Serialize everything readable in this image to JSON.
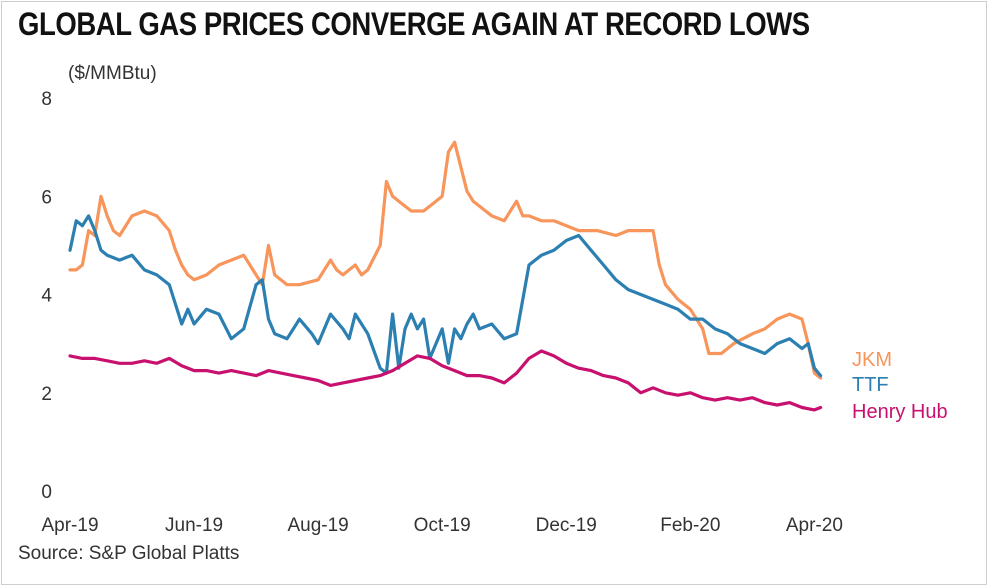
{
  "chart_data": {
    "type": "line",
    "title": "GLOBAL GAS PRICES CONVERGE AGAIN AT RECORD LOWS",
    "ylabel": "($/MMBtu)",
    "xlabel": "",
    "source": "Source: S&P Global Platts",
    "ylim": [
      0,
      8
    ],
    "yticks": [
      0,
      2,
      4,
      6,
      8
    ],
    "xlim": [
      0,
      12.3
    ],
    "xticks": [
      {
        "label": "Apr-19",
        "x": 0
      },
      {
        "label": "Jun-19",
        "x": 2
      },
      {
        "label": "Aug-19",
        "x": 4
      },
      {
        "label": "Oct-19",
        "x": 6
      },
      {
        "label": "Dec-19",
        "x": 8
      },
      {
        "label": "Feb-20",
        "x": 10
      },
      {
        "label": "Apr-20",
        "x": 12
      }
    ],
    "grid": false,
    "legend": "right, inline at line ends",
    "series": [
      {
        "name": "JKM",
        "color": "#f7955b",
        "x": [
          0.0,
          0.1,
          0.2,
          0.3,
          0.4,
          0.5,
          0.6,
          0.7,
          0.8,
          1.0,
          1.2,
          1.4,
          1.6,
          1.7,
          1.8,
          1.9,
          2.0,
          2.2,
          2.4,
          2.6,
          2.8,
          2.9,
          3.0,
          3.1,
          3.2,
          3.3,
          3.5,
          3.7,
          4.0,
          4.2,
          4.3,
          4.4,
          4.5,
          4.6,
          4.7,
          4.8,
          5.0,
          5.1,
          5.2,
          5.3,
          5.4,
          5.5,
          5.7,
          5.9,
          6.0,
          6.1,
          6.2,
          6.3,
          6.4,
          6.5,
          6.6,
          6.8,
          7.0,
          7.2,
          7.3,
          7.4,
          7.6,
          7.8,
          8.0,
          8.2,
          8.5,
          8.8,
          9.0,
          9.2,
          9.4,
          9.5,
          9.6,
          9.8,
          10.0,
          10.2,
          10.3,
          10.5,
          10.7,
          11.0,
          11.2,
          11.4,
          11.6,
          11.8,
          11.9,
          12.0,
          12.1
        ],
        "y": [
          4.5,
          4.5,
          4.6,
          5.3,
          5.2,
          6.0,
          5.6,
          5.3,
          5.2,
          5.6,
          5.7,
          5.6,
          5.3,
          4.9,
          4.6,
          4.4,
          4.3,
          4.4,
          4.6,
          4.7,
          4.8,
          4.6,
          4.4,
          4.2,
          5.0,
          4.4,
          4.2,
          4.2,
          4.3,
          4.7,
          4.5,
          4.4,
          4.5,
          4.6,
          4.4,
          4.5,
          5.0,
          6.3,
          6.0,
          5.9,
          5.8,
          5.7,
          5.7,
          5.9,
          6.0,
          6.9,
          7.1,
          6.6,
          6.1,
          5.9,
          5.8,
          5.6,
          5.5,
          5.9,
          5.6,
          5.6,
          5.5,
          5.5,
          5.4,
          5.3,
          5.3,
          5.2,
          5.3,
          5.3,
          5.3,
          4.6,
          4.2,
          3.9,
          3.7,
          3.3,
          2.8,
          2.8,
          3.0,
          3.2,
          3.3,
          3.5,
          3.6,
          3.5,
          3.0,
          2.4,
          2.3
        ]
      },
      {
        "name": "TTF",
        "color": "#2b7fb1",
        "x": [
          0.0,
          0.1,
          0.2,
          0.3,
          0.4,
          0.5,
          0.6,
          0.8,
          1.0,
          1.2,
          1.4,
          1.6,
          1.8,
          1.9,
          2.0,
          2.2,
          2.4,
          2.6,
          2.8,
          3.0,
          3.1,
          3.2,
          3.3,
          3.5,
          3.7,
          3.9,
          4.0,
          4.2,
          4.4,
          4.5,
          4.6,
          4.8,
          5.0,
          5.1,
          5.2,
          5.3,
          5.4,
          5.5,
          5.6,
          5.7,
          5.8,
          6.0,
          6.1,
          6.2,
          6.3,
          6.4,
          6.5,
          6.6,
          6.8,
          7.0,
          7.2,
          7.4,
          7.6,
          7.8,
          8.0,
          8.2,
          8.4,
          8.6,
          8.8,
          9.0,
          9.2,
          9.4,
          9.6,
          9.8,
          10.0,
          10.2,
          10.4,
          10.6,
          10.8,
          11.0,
          11.2,
          11.4,
          11.6,
          11.8,
          11.9,
          12.0,
          12.1
        ],
        "y": [
          4.9,
          5.5,
          5.4,
          5.6,
          5.3,
          4.9,
          4.8,
          4.7,
          4.8,
          4.5,
          4.4,
          4.2,
          3.4,
          3.7,
          3.4,
          3.7,
          3.6,
          3.1,
          3.3,
          4.2,
          4.3,
          3.5,
          3.2,
          3.1,
          3.5,
          3.2,
          3.0,
          3.6,
          3.3,
          3.1,
          3.6,
          3.2,
          2.5,
          2.4,
          3.6,
          2.5,
          3.3,
          3.6,
          3.3,
          3.5,
          2.7,
          3.3,
          2.6,
          3.3,
          3.1,
          3.4,
          3.6,
          3.3,
          3.4,
          3.1,
          3.2,
          4.6,
          4.8,
          4.9,
          5.1,
          5.2,
          4.9,
          4.6,
          4.3,
          4.1,
          4.0,
          3.9,
          3.8,
          3.7,
          3.5,
          3.5,
          3.3,
          3.2,
          3.0,
          2.9,
          2.8,
          3.0,
          3.1,
          2.9,
          3.0,
          2.5,
          2.35
        ]
      },
      {
        "name": "Henry Hub",
        "color": "#c8106e",
        "x": [
          0.0,
          0.2,
          0.4,
          0.6,
          0.8,
          1.0,
          1.2,
          1.4,
          1.6,
          1.8,
          2.0,
          2.2,
          2.4,
          2.6,
          2.8,
          3.0,
          3.2,
          3.4,
          3.6,
          3.8,
          4.0,
          4.2,
          4.4,
          4.6,
          4.8,
          5.0,
          5.2,
          5.4,
          5.6,
          5.8,
          6.0,
          6.2,
          6.4,
          6.6,
          6.8,
          7.0,
          7.2,
          7.4,
          7.6,
          7.8,
          8.0,
          8.2,
          8.4,
          8.6,
          8.8,
          9.0,
          9.2,
          9.4,
          9.6,
          9.8,
          10.0,
          10.2,
          10.4,
          10.6,
          10.8,
          11.0,
          11.2,
          11.4,
          11.6,
          11.8,
          12.0,
          12.1
        ],
        "y": [
          2.75,
          2.7,
          2.7,
          2.65,
          2.6,
          2.6,
          2.65,
          2.6,
          2.7,
          2.55,
          2.45,
          2.45,
          2.4,
          2.45,
          2.4,
          2.35,
          2.45,
          2.4,
          2.35,
          2.3,
          2.25,
          2.15,
          2.2,
          2.25,
          2.3,
          2.35,
          2.45,
          2.6,
          2.75,
          2.7,
          2.55,
          2.45,
          2.35,
          2.35,
          2.3,
          2.2,
          2.4,
          2.7,
          2.85,
          2.75,
          2.6,
          2.5,
          2.45,
          2.35,
          2.3,
          2.2,
          2.0,
          2.1,
          2.0,
          1.95,
          2.0,
          1.9,
          1.85,
          1.9,
          1.85,
          1.9,
          1.8,
          1.75,
          1.8,
          1.7,
          1.65,
          1.7
        ]
      }
    ]
  }
}
